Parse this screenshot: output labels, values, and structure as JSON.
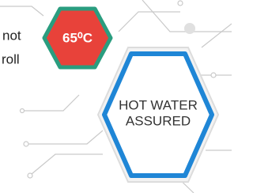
{
  "badge": {
    "temperature": "65⁰C"
  },
  "label": {
    "line1": "HOT WATER",
    "line2": "ASSURED"
  },
  "cropped_text": [
    "not",
    "roll"
  ]
}
